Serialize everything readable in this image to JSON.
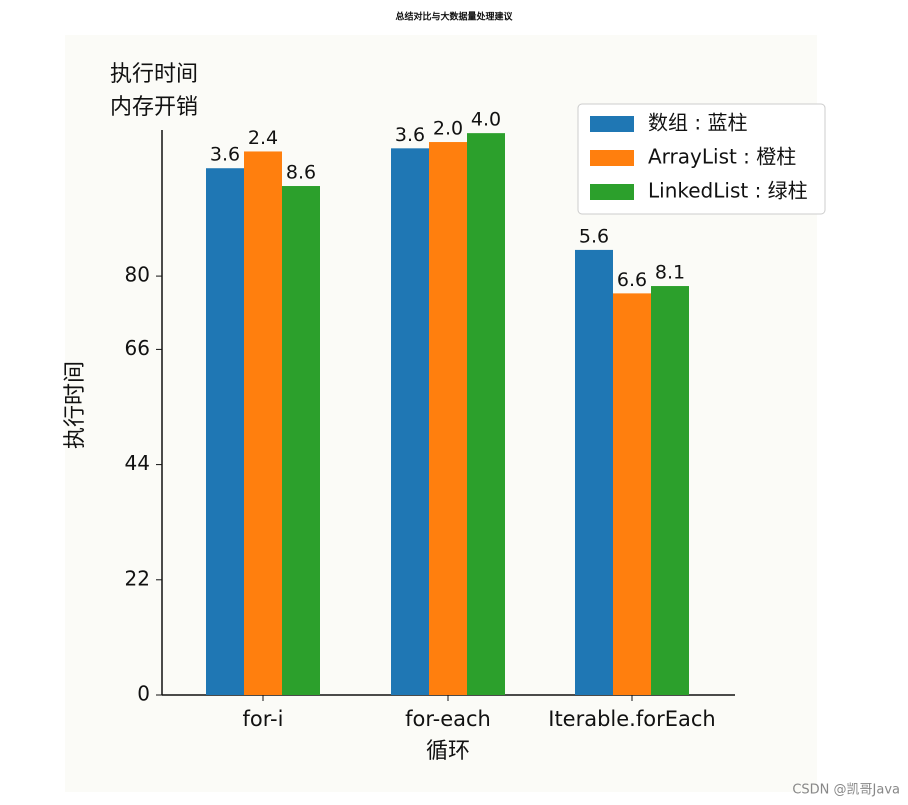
{
  "chart_data": {
    "type": "bar",
    "title": "总结对比与大数据量处理建议",
    "corner_label": [
      "执行时间",
      "内存开销"
    ],
    "y_label": "执行时间",
    "x_label": "循环",
    "categories": [
      "for-i",
      "for-each",
      "Iterable.forEach"
    ],
    "series": [
      {
        "name": "数组 : 蓝柱",
        "color": "#1f77b4",
        "values": [
          100.6,
          104.4,
          85
        ],
        "annotations": [
          "3.6",
          "3.6",
          "5.6"
        ]
      },
      {
        "name": "ArrayList : 橙柱",
        "color": "#ff7f0e",
        "values": [
          103.8,
          105.6,
          76.7
        ],
        "annotations": [
          "2.4",
          "2.0",
          "6.6"
        ]
      },
      {
        "name": "LinkedList : 绿柱",
        "color": "#2ca02c",
        "values": [
          97.2,
          107.3,
          78.1
        ],
        "annotations": [
          "8.6",
          "4.0",
          "8.1"
        ]
      }
    ],
    "ylim": [
      0,
      110
    ],
    "yticks": [
      0,
      22,
      44,
      66,
      80
    ],
    "legend": "upper right",
    "watermark": "CSDN @凯哥Java"
  }
}
